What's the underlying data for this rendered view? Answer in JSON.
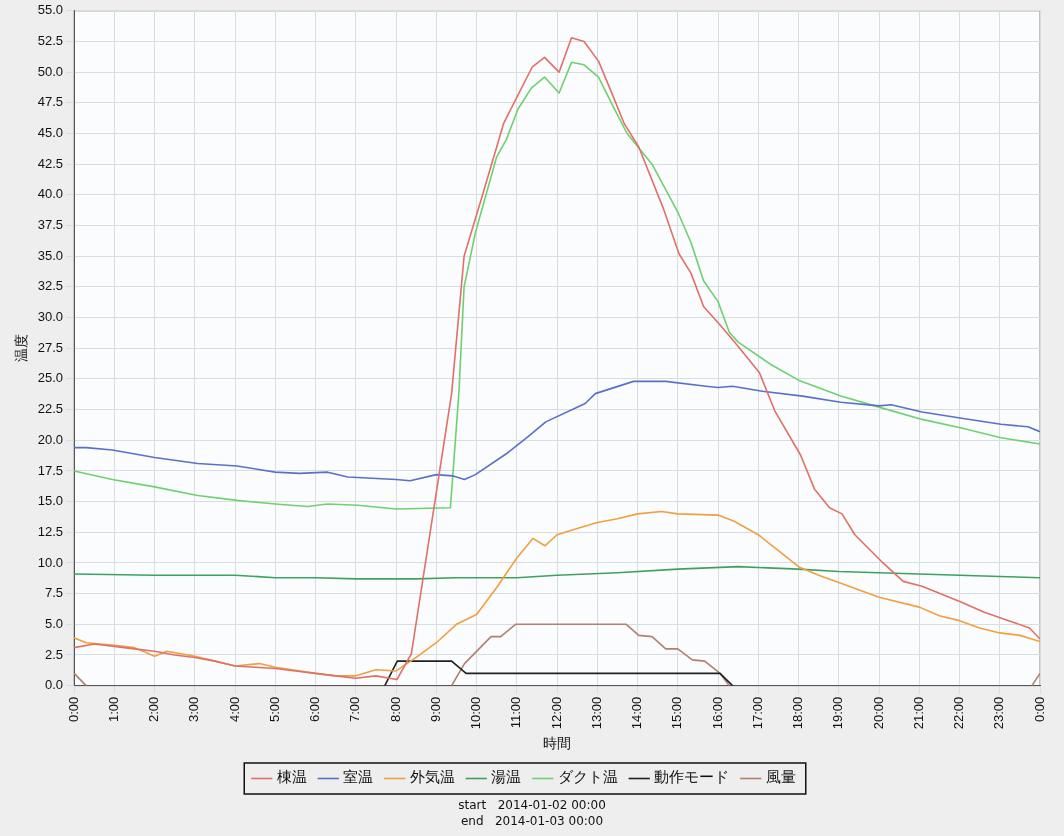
{
  "chart_data": {
    "type": "line",
    "xlabel": "時間",
    "ylabel": "温度",
    "xlim": [
      0,
      24
    ],
    "xticks": [
      {
        "value": 0,
        "label": "0:00"
      },
      {
        "value": 1,
        "label": "1:00"
      },
      {
        "value": 2,
        "label": "2:00"
      },
      {
        "value": 3,
        "label": "3:00"
      },
      {
        "value": 4,
        "label": "4:00"
      },
      {
        "value": 5,
        "label": "5:00"
      },
      {
        "value": 6,
        "label": "6:00"
      },
      {
        "value": 7,
        "label": "7:00"
      },
      {
        "value": 8,
        "label": "8:00"
      },
      {
        "value": 9,
        "label": "9:00"
      },
      {
        "value": 10,
        "label": "10:00"
      },
      {
        "value": 11,
        "label": "11:00"
      },
      {
        "value": 12,
        "label": "12:00"
      },
      {
        "value": 13,
        "label": "13:00"
      },
      {
        "value": 14,
        "label": "14:00"
      },
      {
        "value": 15,
        "label": "15:00"
      },
      {
        "value": 16,
        "label": "16:00"
      },
      {
        "value": 17,
        "label": "17:00"
      },
      {
        "value": 18,
        "label": "18:00"
      },
      {
        "value": 19,
        "label": "19:00"
      },
      {
        "value": 20,
        "label": "20:00"
      },
      {
        "value": 21,
        "label": "21:00"
      },
      {
        "value": 22,
        "label": "22:00"
      },
      {
        "value": 23,
        "label": "23:00"
      },
      {
        "value": 24,
        "label": "0:00"
      }
    ],
    "ylim": [
      0,
      55
    ],
    "yticks": [
      {
        "value": 0,
        "label": "0.0"
      },
      {
        "value": 2.5,
        "label": "2.5"
      },
      {
        "value": 5,
        "label": "5.0"
      },
      {
        "value": 7.5,
        "label": "7.5"
      },
      {
        "value": 10,
        "label": "10.0"
      },
      {
        "value": 12.5,
        "label": "12.5"
      },
      {
        "value": 15,
        "label": "15.0"
      },
      {
        "value": 17.5,
        "label": "17.5"
      },
      {
        "value": 20,
        "label": "20.0"
      },
      {
        "value": 22.5,
        "label": "22.5"
      },
      {
        "value": 25,
        "label": "25.0"
      },
      {
        "value": 27.5,
        "label": "27.5"
      },
      {
        "value": 30,
        "label": "30.0"
      },
      {
        "value": 32.5,
        "label": "32.5"
      },
      {
        "value": 35,
        "label": "35.0"
      },
      {
        "value": 37.5,
        "label": "37.5"
      },
      {
        "value": 40,
        "label": "40.0"
      },
      {
        "value": 42.5,
        "label": "42.5"
      },
      {
        "value": 45,
        "label": "45.0"
      },
      {
        "value": 47.5,
        "label": "47.5"
      },
      {
        "value": 50,
        "label": "50.0"
      },
      {
        "value": 52.5,
        "label": "52.5"
      },
      {
        "value": 55,
        "label": "55.0"
      }
    ],
    "grid": true,
    "legend": "bottom",
    "marker": "none",
    "line_style": "solid",
    "annotations": [
      "start   2014-01-02 00:00",
      "end   2014-01-03 00:00"
    ],
    "series": [
      {
        "name": "棟温",
        "color": "#e07068",
        "x": [
          0,
          0.5,
          1,
          1.5,
          2,
          2.5,
          3,
          3.5,
          4,
          4.5,
          5,
          5.5,
          6,
          6.5,
          7,
          7.5,
          8.02,
          8.38,
          9.38,
          9.69,
          10.15,
          10.67,
          11.38,
          11.69,
          12.05,
          12.36,
          12.67,
          13.03,
          13.31,
          13.67,
          14.03,
          14.64,
          15.03,
          15.33,
          15.64,
          16.05,
          16.41,
          17.03,
          17.41,
          18.05,
          18.4,
          18.77,
          19.08,
          19.4,
          20.1,
          20.6,
          21.07,
          22.05,
          22.6,
          23.13,
          23.74,
          24
        ],
        "values": [
          3.1,
          3.4,
          3.2,
          3.0,
          2.8,
          2.5,
          2.3,
          2.0,
          1.6,
          1.5,
          1.4,
          1.2,
          1.0,
          0.8,
          0.6,
          0.8,
          0.5,
          2.6,
          23.8,
          35.0,
          40.0,
          45.8,
          50.4,
          51.2,
          50.0,
          52.8,
          52.5,
          50.9,
          48.7,
          45.8,
          43.9,
          38.9,
          35.2,
          33.6,
          30.9,
          29.4,
          28.0,
          25.5,
          22.4,
          18.8,
          16.0,
          14.5,
          14.0,
          12.3,
          10.0,
          8.5,
          8.1,
          6.8,
          6.0,
          5.4,
          4.7,
          3.8
        ]
      },
      {
        "name": "室温",
        "color": "#5a70c8",
        "x": [
          0,
          0.3,
          0.95,
          2.0,
          3.07,
          4.05,
          5.0,
          5.6,
          6.3,
          6.8,
          8.0,
          8.35,
          9.0,
          9.4,
          9.7,
          9.97,
          10.74,
          11.28,
          11.72,
          12.7,
          12.95,
          13.9,
          14.7,
          15.7,
          16.0,
          16.36,
          17.1,
          18.1,
          19.05,
          20.0,
          20.3,
          21.07,
          22.05,
          23.03,
          23.7,
          24
        ],
        "values": [
          19.4,
          19.4,
          19.2,
          18.6,
          18.1,
          17.9,
          17.4,
          17.3,
          17.4,
          17.0,
          16.8,
          16.7,
          17.2,
          17.1,
          16.8,
          17.2,
          18.9,
          20.3,
          21.5,
          23.0,
          23.8,
          24.8,
          24.8,
          24.4,
          24.3,
          24.4,
          24.0,
          23.6,
          23.1,
          22.8,
          22.9,
          22.3,
          21.8,
          21.3,
          21.1,
          20.7
        ]
      },
      {
        "name": "外気温",
        "color": "#f0a040",
        "x": [
          0,
          0.3,
          1,
          1.5,
          2,
          2.3,
          3,
          3.5,
          4,
          4.6,
          5,
          6,
          6.5,
          7,
          7.5,
          8,
          8.5,
          9,
          9.5,
          10,
          10.5,
          11,
          11.4,
          11.7,
          12,
          12.5,
          13,
          13.5,
          14,
          14.6,
          15,
          16,
          16.4,
          17,
          17.5,
          18,
          18.5,
          19,
          20,
          21,
          21.5,
          22,
          22.5,
          23,
          23.5,
          24
        ],
        "values": [
          3.9,
          3.5,
          3.3,
          3.1,
          2.4,
          2.8,
          2.4,
          2.0,
          1.6,
          1.8,
          1.5,
          1.0,
          0.8,
          0.8,
          1.3,
          1.2,
          2.3,
          3.5,
          5.0,
          5.8,
          8.0,
          10.4,
          12.0,
          11.4,
          12.3,
          12.8,
          13.3,
          13.6,
          14.0,
          14.2,
          14.0,
          13.9,
          13.4,
          12.3,
          11.0,
          9.7,
          9.0,
          8.4,
          7.2,
          6.4,
          5.7,
          5.3,
          4.7,
          4.3,
          4.1,
          3.6
        ]
      },
      {
        "name": "湯温",
        "color": "#40a060",
        "x": [
          0,
          2,
          4,
          5,
          6,
          7,
          8.5,
          9.5,
          11,
          12,
          13.5,
          15,
          16.5,
          18,
          19,
          20,
          21,
          22,
          23,
          24
        ],
        "values": [
          9.1,
          9.0,
          9.0,
          8.8,
          8.8,
          8.7,
          8.7,
          8.8,
          8.8,
          9.0,
          9.2,
          9.5,
          9.7,
          9.5,
          9.3,
          9.2,
          9.1,
          9.0,
          8.9,
          8.8
        ]
      },
      {
        "name": "ダクト温",
        "color": "#70d070",
        "x": [
          0,
          0.95,
          2.0,
          3.07,
          4.05,
          5.0,
          5.8,
          6.3,
          7.05,
          8.0,
          9.35,
          9.56,
          9.69,
          9.97,
          10.5,
          10.74,
          11.03,
          11.36,
          11.69,
          12.05,
          12.36,
          12.67,
          13.03,
          13.38,
          13.74,
          14.36,
          15.0,
          15.33,
          15.64,
          16.0,
          16.28,
          16.5,
          17.3,
          18.0,
          19.05,
          20.0,
          21.07,
          22.05,
          23.03,
          24
        ],
        "values": [
          17.5,
          16.8,
          16.2,
          15.5,
          15.1,
          14.8,
          14.6,
          14.8,
          14.7,
          14.4,
          14.5,
          23.8,
          32.5,
          36.9,
          43.1,
          44.5,
          47.0,
          48.7,
          49.6,
          48.3,
          50.8,
          50.6,
          49.6,
          47.3,
          45.0,
          42.5,
          38.6,
          36.1,
          33.0,
          31.3,
          28.8,
          28.0,
          26.2,
          24.9,
          23.6,
          22.7,
          21.7,
          21.0,
          20.2,
          19.7
        ]
      },
      {
        "name": "動作モード",
        "color": "#202020",
        "x": [
          7.72,
          8.03,
          9.38,
          9.74,
          16.05,
          16.36
        ],
        "values": [
          0,
          2,
          2,
          1,
          1,
          0
        ]
      },
      {
        "name": "風量",
        "color": "#b08070",
        "x": [
          0,
          0.3,
          5,
          9.38,
          9.7,
          10.36,
          10.6,
          10.97,
          13.72,
          14.03,
          14.36,
          14.7,
          15.0,
          15.36,
          15.67,
          16.05,
          16.28,
          20,
          23.8,
          24
        ],
        "values": [
          1.0,
          0,
          null,
          0,
          1.8,
          4.0,
          4.0,
          5.0,
          5.0,
          4.1,
          4.0,
          3.0,
          3.0,
          2.1,
          2.0,
          1.0,
          0,
          null,
          0,
          1.0
        ]
      }
    ]
  }
}
